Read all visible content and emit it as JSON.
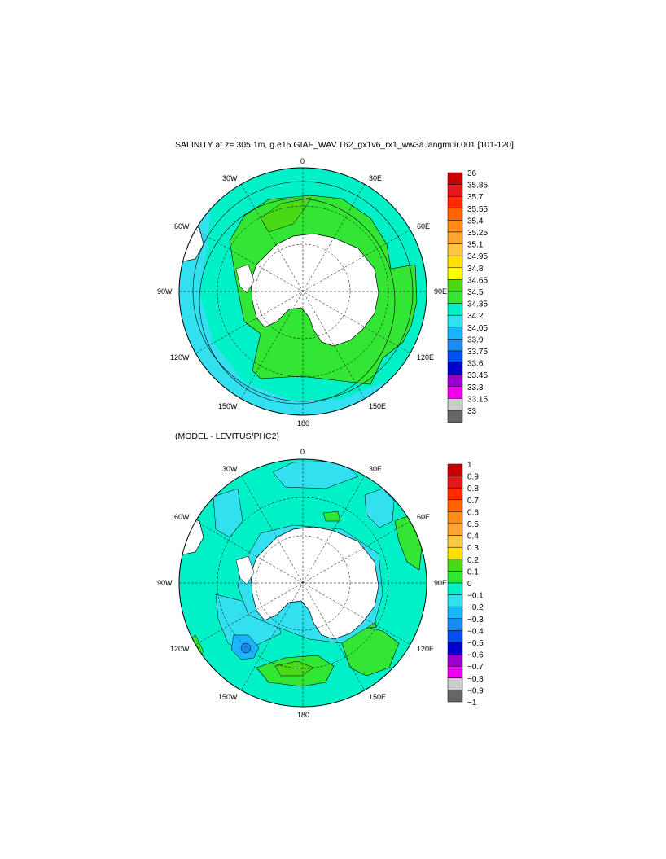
{
  "panels": [
    {
      "title": "SALINITY at z= 305.1m, g.e15.GIAF_WAV.T62_gx1v6_rx1_ww3a.langmuir.001 [101-120]",
      "lon_labels": {
        "top": "0",
        "bottom": "180",
        "left": "90W",
        "right": "90E",
        "tl1": "30W",
        "tr1": "30E",
        "tl2": "60W",
        "tr2": "60E",
        "bl1": "120W",
        "br1": "120E",
        "bl2": "150W",
        "br2": "150E"
      },
      "colorbar": {
        "labels": [
          "36",
          "35.85",
          "35.7",
          "35.55",
          "35.4",
          "35.25",
          "35.1",
          "34.95",
          "34.8",
          "34.65",
          "34.5",
          "34.35",
          "34.2",
          "34.05",
          "33.9",
          "33.75",
          "33.6",
          "33.45",
          "33.3",
          "33.15",
          "33"
        ],
        "colors": [
          "#cc0000",
          "#e31a1c",
          "#ff2a00",
          "#ff6400",
          "#ff8c1a",
          "#ffa533",
          "#ffc844",
          "#ffe000",
          "#ffff00",
          "#49d916",
          "#33e633",
          "#00f0c8",
          "#33e0f0",
          "#1ab4ff",
          "#1a8cf0",
          "#0050f0",
          "#0000cc",
          "#9900cc",
          "#ee00ee",
          "#cccccc",
          "#666666"
        ]
      }
    },
    {
      "title": "(MODEL - LEVITUS/PHC2)",
      "lon_labels": {
        "top": "0",
        "bottom": "180",
        "left": "90W",
        "right": "90E",
        "tl1": "30W",
        "tr1": "30E",
        "tl2": "60W",
        "tr2": "60E",
        "bl1": "120W",
        "br1": "120E",
        "bl2": "150W",
        "br2": "150E"
      },
      "colorbar": {
        "labels": [
          "1",
          "0.9",
          "0.8",
          "0.7",
          "0.6",
          "0.5",
          "0.4",
          "0.3",
          "0.2",
          "0.1",
          "0",
          "−0.1",
          "−0.2",
          "−0.3",
          "−0.4",
          "−0.5",
          "−0.6",
          "−0.7",
          "−0.8",
          "−0.9",
          "−1"
        ],
        "colors": [
          "#cc0000",
          "#e31a1c",
          "#ff2a00",
          "#ff6400",
          "#ff8c1a",
          "#ffa533",
          "#ffc844",
          "#ffe000",
          "#49d916",
          "#33e633",
          "#00f0c8",
          "#33e0f0",
          "#1ab4ff",
          "#1a8cf0",
          "#0050f0",
          "#0000cc",
          "#9900cc",
          "#ee00ee",
          "#cccccc",
          "#666666"
        ]
      }
    }
  ]
}
